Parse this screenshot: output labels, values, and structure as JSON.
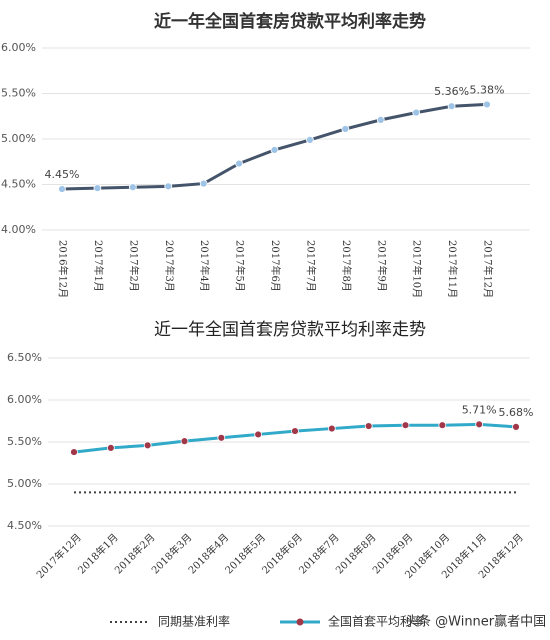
{
  "chart_data": [
    {
      "type": "line",
      "title": "近一年全国首套房贷款平均利率走势",
      "categories": [
        "2016年12月",
        "2017年1月",
        "2017年2月",
        "2017年3月",
        "2017年4月",
        "2017年5月",
        "2017年6月",
        "2017年7月",
        "2017年8月",
        "2017年9月",
        "2017年10月",
        "2017年11月",
        "2017年12月"
      ],
      "series": [
        {
          "color": "#44546a",
          "marker_color": "#9dc3e6",
          "values": [
            4.45,
            4.46,
            4.47,
            4.48,
            4.51,
            4.73,
            4.88,
            4.99,
            5.11,
            5.21,
            5.29,
            5.36,
            5.38
          ],
          "value_labels": [
            "4.45%",
            null,
            null,
            null,
            null,
            null,
            null,
            null,
            null,
            null,
            null,
            "5.36%",
            "5.38%"
          ]
        }
      ],
      "ylim": [
        4.0,
        6.0
      ],
      "yticks": [
        {
          "value": 4.0,
          "label": "4.00%"
        },
        {
          "value": 4.5,
          "label": "4.50%"
        },
        {
          "value": 5.0,
          "label": "5.00%"
        },
        {
          "value": 5.5,
          "label": "5.50%"
        },
        {
          "value": 6.0,
          "label": "6.00%"
        }
      ],
      "grid": true
    },
    {
      "type": "line",
      "title": "近一年全国首套房贷款平均利率走势",
      "categories": [
        "2017年12月",
        "2018年1月",
        "2018年2月",
        "2018年3月",
        "2018年4月",
        "2018年5月",
        "2018年6月",
        "2018年7月",
        "2018年8月",
        "2018年9月",
        "2018年10月",
        "2018年11月",
        "2018年12月"
      ],
      "series": [
        {
          "name": "同期基准利率",
          "color": "#404040",
          "dash": "dotted",
          "values": [
            4.9,
            4.9,
            4.9,
            4.9,
            4.9,
            4.9,
            4.9,
            4.9,
            4.9,
            4.9,
            4.9,
            4.9,
            4.9
          ]
        },
        {
          "name": "全国首套平均利率",
          "color": "#31a9c9",
          "marker_color": "#a0384a",
          "values": [
            5.38,
            5.43,
            5.46,
            5.51,
            5.55,
            5.59,
            5.63,
            5.66,
            5.69,
            5.7,
            5.7,
            5.71,
            5.68
          ],
          "value_labels": [
            null,
            null,
            null,
            null,
            null,
            null,
            null,
            null,
            null,
            null,
            null,
            "5.71%",
            "5.68%"
          ]
        }
      ],
      "ylim": [
        4.5,
        6.5
      ],
      "yticks": [
        {
          "value": 4.5,
          "label": "4.50%"
        },
        {
          "value": 5.0,
          "label": "5.00%"
        },
        {
          "value": 5.5,
          "label": "5.50%"
        },
        {
          "value": 6.0,
          "label": "6.00%"
        },
        {
          "value": 6.5,
          "label": "6.50%"
        }
      ],
      "grid": true,
      "legend": "bottom"
    }
  ],
  "watermark": "头条 @Winner赢者中国"
}
